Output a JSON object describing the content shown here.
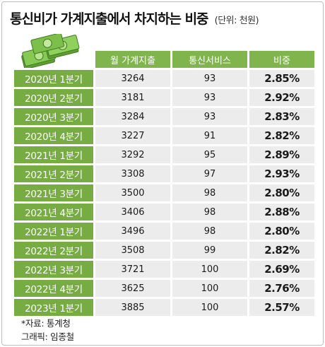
{
  "title": "통신비가 가계지출에서 차지하는 비중",
  "unit": "(단위: 천원)",
  "table": {
    "headers": [
      "월 가계지출",
      "통신서비스",
      "비중"
    ],
    "rows": [
      {
        "period": "2020년 1분기",
        "spending": "3264",
        "telecom": "93",
        "share": "2.85%"
      },
      {
        "period": "2020년 2분기",
        "spending": "3181",
        "telecom": "93",
        "share": "2.92%"
      },
      {
        "period": "2020년 3분기",
        "spending": "3284",
        "telecom": "93",
        "share": "2.83%"
      },
      {
        "period": "2020년 4분기",
        "spending": "3227",
        "telecom": "91",
        "share": "2.82%"
      },
      {
        "period": "2021년 1분기",
        "spending": "3292",
        "telecom": "95",
        "share": "2.89%"
      },
      {
        "period": "2021년 2분기",
        "spending": "3308",
        "telecom": "97",
        "share": "2.93%"
      },
      {
        "period": "2021년 3분기",
        "spending": "3500",
        "telecom": "98",
        "share": "2.80%"
      },
      {
        "period": "2021년 4분기",
        "spending": "3406",
        "telecom": "98",
        "share": "2.88%"
      },
      {
        "period": "2022년 1분기",
        "spending": "3496",
        "telecom": "98",
        "share": "2.80%"
      },
      {
        "period": "2022년 2분기",
        "spending": "3508",
        "telecom": "99",
        "share": "2.82%"
      },
      {
        "period": "2022년 3분기",
        "spending": "3721",
        "telecom": "100",
        "share": "2.69%"
      },
      {
        "period": "2022년 4분기",
        "spending": "3625",
        "telecom": "100",
        "share": "2.76%"
      },
      {
        "period": "2023년 1분기",
        "spending": "3885",
        "telecom": "100",
        "share": "2.57%"
      }
    ]
  },
  "footer": {
    "source": "*자료: 통계청",
    "credit": "그래픽: 임종철"
  },
  "illustration": {
    "icon": "money-stack-icon",
    "color": "#7fc24a"
  },
  "colors": {
    "header_green": "#7fb54c",
    "period_green": "#76ac42",
    "cell_gray": "#ececec"
  }
}
